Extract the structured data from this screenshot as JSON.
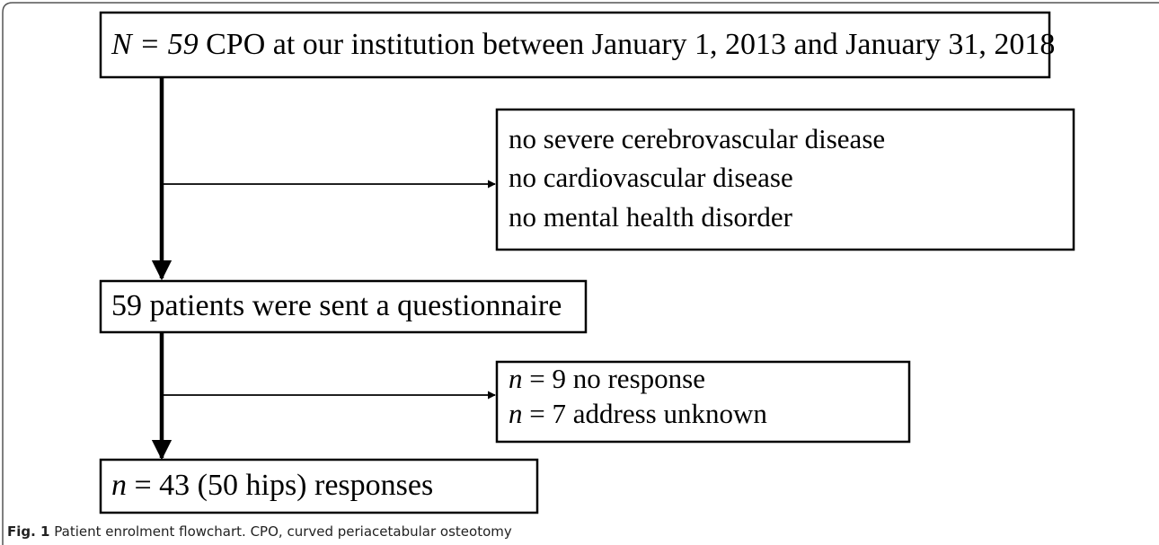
{
  "nodes": [
    {
      "lines": [
        {
          "italic": "N = 59",
          "text": " CPO at our institution between January 1, 2013 and January 31, 2018"
        }
      ]
    },
    {
      "lines": [
        {
          "text": "no severe cerebrovascular disease"
        },
        {
          "text": "no cardiovascular disease"
        },
        {
          "text": "no mental health disorder"
        }
      ]
    },
    {
      "lines": [
        {
          "text": "59 patients were sent a questionnaire"
        }
      ]
    },
    {
      "lines": [
        {
          "italic": "n",
          "text": " = 9 no response"
        },
        {
          "italic": "n",
          "text": " = 7 address unknown"
        }
      ]
    },
    {
      "lines": [
        {
          "italic": "n",
          "text": " = 43 (50 hips) responses"
        }
      ]
    }
  ],
  "caption": {
    "label": "Fig. 1",
    "text": " Patient enrolment flowchart. CPO, curved periacetabular osteotomy"
  }
}
